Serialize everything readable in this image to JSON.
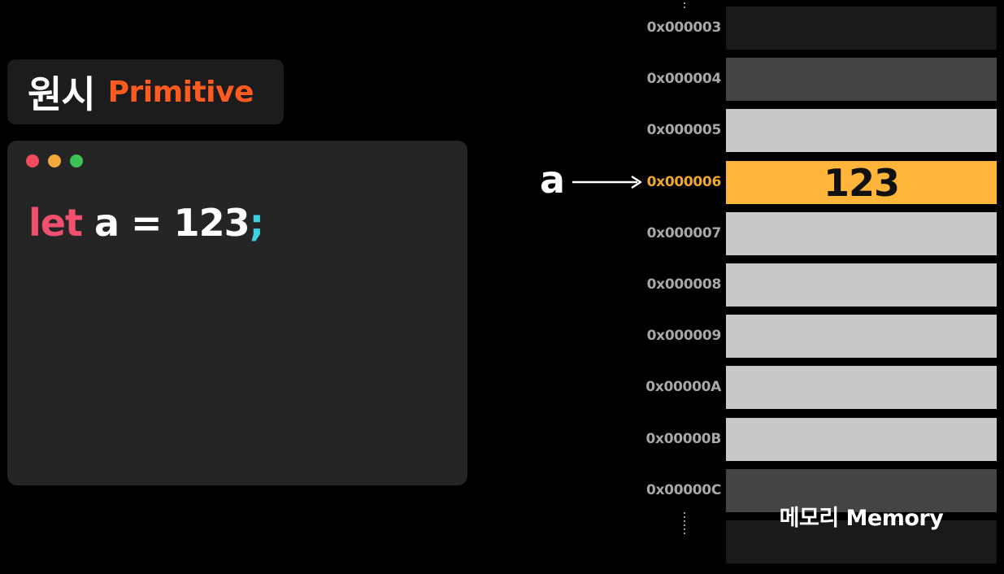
{
  "title": {
    "korean": "원시",
    "english": "Primitive",
    "english_color": "#ff5a1f"
  },
  "code_window": {
    "traffic_lights": [
      {
        "name": "close",
        "color": "#ee4b5f"
      },
      {
        "name": "minimize",
        "color": "#f3a83a"
      },
      {
        "name": "maximize",
        "color": "#3cc256"
      }
    ],
    "code": {
      "keyword": "let",
      "statement": " a = 123",
      "terminator": ";"
    }
  },
  "pointer": {
    "variable": "a",
    "target_address": "0x000006"
  },
  "memory": {
    "label": "메모리 Memory",
    "highlight_color": "#ffb43a",
    "cells": [
      {
        "address": "0x000003",
        "value": "",
        "state": "dark"
      },
      {
        "address": "0x000004",
        "value": "",
        "state": "mid"
      },
      {
        "address": "0x000005",
        "value": "",
        "state": "light"
      },
      {
        "address": "0x000006",
        "value": "123",
        "state": "active"
      },
      {
        "address": "0x000007",
        "value": "",
        "state": "light"
      },
      {
        "address": "0x000008",
        "value": "",
        "state": "light"
      },
      {
        "address": "0x000009",
        "value": "",
        "state": "light"
      },
      {
        "address": "0x00000A",
        "value": "",
        "state": "light"
      },
      {
        "address": "0x00000B",
        "value": "",
        "state": "light"
      },
      {
        "address": "0x00000C",
        "value": "",
        "state": "mid"
      },
      {
        "address": "",
        "value": "",
        "state": "dark"
      }
    ]
  }
}
